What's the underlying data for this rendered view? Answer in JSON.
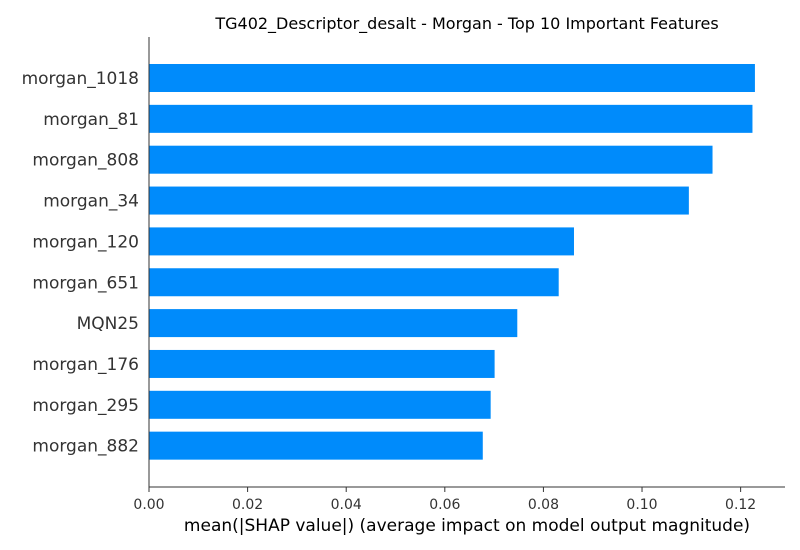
{
  "chart_data": {
    "type": "bar",
    "orientation": "horizontal",
    "title": "TG402_Descriptor_desalt - Morgan - Top 10 Important Features",
    "xlabel": "mean(|SHAP value|) (average impact on model output magnitude)",
    "ylabel": "",
    "categories": [
      "morgan_1018",
      "morgan_81",
      "morgan_808",
      "morgan_34",
      "morgan_120",
      "morgan_651",
      "MQN25",
      "morgan_176",
      "morgan_295",
      "morgan_882"
    ],
    "values": [
      0.1229,
      0.1224,
      0.1143,
      0.1095,
      0.0862,
      0.0831,
      0.0747,
      0.0701,
      0.0693,
      0.0677
    ],
    "xlim": [
      0,
      0.129
    ],
    "xticks": [
      "0.00",
      "0.02",
      "0.04",
      "0.06",
      "0.08",
      "0.10",
      "0.12"
    ],
    "xtick_values": [
      0,
      0.02,
      0.04,
      0.06,
      0.08,
      0.1,
      0.12
    ],
    "bar_color": "#008bfb",
    "grid": false,
    "legend": "none"
  }
}
